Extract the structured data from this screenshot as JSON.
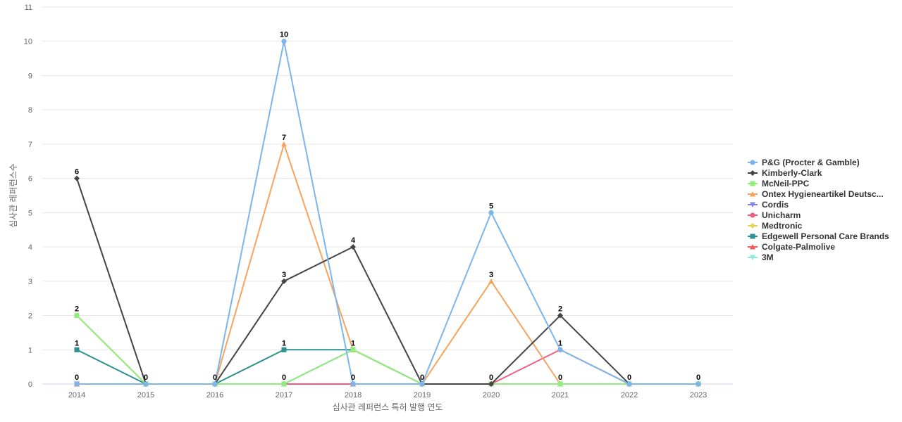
{
  "chart_data": {
    "type": "line",
    "title": "",
    "xlabel": "심사관 레퍼런스 특허 발행 연도",
    "ylabel": "심사관 레퍼런스수",
    "x": [
      "2014",
      "2015",
      "2016",
      "2017",
      "2018",
      "2019",
      "2020",
      "2021",
      "2022",
      "2023"
    ],
    "ylim": [
      0,
      11
    ],
    "yticks": [
      0,
      1,
      2,
      3,
      4,
      5,
      6,
      7,
      8,
      9,
      10,
      11
    ],
    "grid": true,
    "legend_position": "right",
    "series": [
      {
        "name": "P&G (Procter & Gamble)",
        "color": "#7cb5ec",
        "marker": "circle",
        "values": [
          0,
          0,
          0,
          10,
          0,
          0,
          5,
          1,
          0,
          0
        ]
      },
      {
        "name": "Kimberly-Clark",
        "color": "#434348",
        "marker": "diamond",
        "values": [
          6,
          0,
          0,
          3,
          4,
          0,
          0,
          2,
          0,
          0
        ]
      },
      {
        "name": "McNeil-PPC",
        "color": "#90ed7d",
        "marker": "square",
        "values": [
          2,
          0,
          0,
          0,
          1,
          0,
          0,
          0,
          0,
          0
        ]
      },
      {
        "name": "Ontex Hygieneartikel Deutsc...",
        "color": "#f7a35c",
        "marker": "triangle",
        "values": [
          2,
          0,
          0,
          7,
          1,
          0,
          3,
          0,
          0,
          0
        ]
      },
      {
        "name": "Cordis",
        "color": "#8085e9",
        "marker": "triangle-down",
        "values": [
          0,
          0,
          0,
          0,
          1,
          0,
          0,
          0,
          0,
          0
        ]
      },
      {
        "name": "Unicharm",
        "color": "#f15c80",
        "marker": "circle",
        "values": [
          0,
          0,
          0,
          0,
          0,
          0,
          0,
          1,
          0,
          0
        ]
      },
      {
        "name": "Medtronic",
        "color": "#e4d354",
        "marker": "diamond",
        "values": [
          0,
          0,
          0,
          0,
          0,
          0,
          0,
          0,
          0,
          0
        ]
      },
      {
        "name": "Edgewell Personal Care Brands",
        "color": "#2b908f",
        "marker": "square",
        "values": [
          1,
          0,
          0,
          1,
          1,
          0,
          0,
          0,
          0,
          0
        ]
      },
      {
        "name": "Colgate-Palmolive",
        "color": "#f45b5b",
        "marker": "triangle",
        "values": [
          0,
          0,
          0,
          0,
          0,
          0,
          0,
          0,
          0,
          0
        ]
      },
      {
        "name": "3M",
        "color": "#91e8e1",
        "marker": "triangle-down",
        "values": [
          0,
          0,
          0,
          0,
          0,
          0,
          0,
          0,
          0,
          0
        ]
      }
    ],
    "data_labels": [
      {
        "x": "2014",
        "value": "6"
      },
      {
        "x": "2014",
        "value": "2"
      },
      {
        "x": "2014",
        "value": "1"
      },
      {
        "x": "2014",
        "value": "0"
      },
      {
        "x": "2015",
        "value": "0"
      },
      {
        "x": "2016",
        "value": "0"
      },
      {
        "x": "2017",
        "value": "10"
      },
      {
        "x": "2017",
        "value": "7"
      },
      {
        "x": "2017",
        "value": "3"
      },
      {
        "x": "2017",
        "value": "1"
      },
      {
        "x": "2017",
        "value": "0"
      },
      {
        "x": "2018",
        "value": "4"
      },
      {
        "x": "2018",
        "value": "1"
      },
      {
        "x": "2018",
        "value": "0"
      },
      {
        "x": "2019",
        "value": "0"
      },
      {
        "x": "2020",
        "value": "5"
      },
      {
        "x": "2020",
        "value": "3"
      },
      {
        "x": "2020",
        "value": "0"
      },
      {
        "x": "2021",
        "value": "2"
      },
      {
        "x": "2021",
        "value": "1"
      },
      {
        "x": "2021",
        "value": "0"
      },
      {
        "x": "2022",
        "value": "0"
      },
      {
        "x": "2023",
        "value": "0"
      }
    ]
  }
}
